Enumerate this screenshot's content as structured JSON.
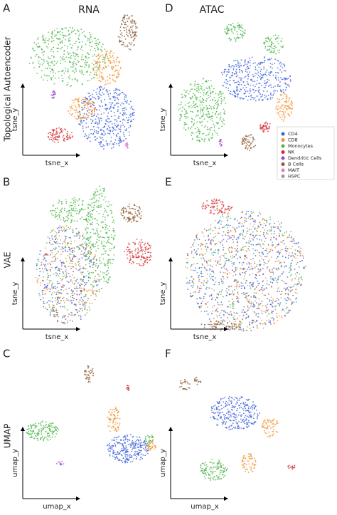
{
  "columns": [
    "RNA",
    "ATAC"
  ],
  "rows": [
    "Topological Autoencoder",
    "VAE",
    "UMAP"
  ],
  "panels": [
    {
      "letter": "A",
      "x_label": "tsne_x",
      "y_label": "tsne_y"
    },
    {
      "letter": "D",
      "x_label": "tsne_x",
      "y_label": "tsne_y"
    },
    {
      "letter": "B",
      "x_label": "tsne_x",
      "y_label": "tsne_y"
    },
    {
      "letter": "E",
      "x_label": "tsne_x",
      "y_label": "tsne_y"
    },
    {
      "letter": "C",
      "x_label": "umap_x",
      "y_label": "umap_y"
    },
    {
      "letter": "F",
      "x_label": "umap_x",
      "y_label": "umap_y"
    }
  ],
  "legend": [
    {
      "name": "CD4",
      "color": "#3b5fd9"
    },
    {
      "name": "CD8",
      "color": "#f28e2b"
    },
    {
      "name": "Monocytes",
      "color": "#4cb748"
    },
    {
      "name": "NK",
      "color": "#d62728"
    },
    {
      "name": "Dendritic Cells",
      "color": "#9b45c9"
    },
    {
      "name": "B Cells",
      "color": "#8c5a33"
    },
    {
      "name": "MAIT",
      "color": "#e377c2"
    },
    {
      "name": "HSPC",
      "color": "#999999"
    }
  ]
}
